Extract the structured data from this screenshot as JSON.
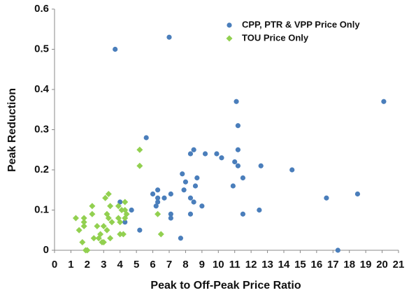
{
  "chart_data": {
    "type": "scatter",
    "xlabel": "Peak to Off-Peak Price Ratio",
    "ylabel": "Peak Reduction",
    "xlim": [
      0,
      21
    ],
    "xticks": [
      0,
      1,
      2,
      3,
      4,
      5,
      6,
      7,
      8,
      9,
      10,
      11,
      12,
      13,
      14,
      15,
      16,
      17,
      18,
      19,
      20,
      21
    ],
    "ylim": [
      0,
      0.6
    ],
    "yticks": [
      0,
      0.1,
      0.2,
      0.3,
      0.4,
      0.5,
      0.6
    ],
    "legend": "upper right",
    "series": [
      {
        "name": "CPP, PTR & VPP Price Only",
        "color": "#4a7ebb",
        "marker": "circle",
        "x": [
          3.7,
          7.0,
          5.6,
          20.1,
          11.1,
          11.2,
          8.5,
          8.3,
          9.2,
          9.9,
          10.2,
          11.2,
          11.0,
          11.2,
          12.6,
          14.5,
          7.8,
          8.7,
          11.5,
          8.0,
          8.6,
          10.9,
          7.9,
          6.3,
          6.0,
          7.1,
          18.5,
          6.3,
          6.7,
          8.3,
          16.6,
          6.3,
          8.5,
          4.0,
          6.2,
          9.0,
          4.7,
          12.5,
          7.1,
          8.3,
          11.5,
          7.1,
          4.3,
          5.2,
          7.7,
          17.3
        ],
        "values": [
          0.5,
          0.53,
          0.28,
          0.37,
          0.37,
          0.31,
          0.25,
          0.24,
          0.24,
          0.24,
          0.23,
          0.25,
          0.22,
          0.21,
          0.21,
          0.2,
          0.19,
          0.18,
          0.18,
          0.17,
          0.16,
          0.16,
          0.15,
          0.15,
          0.14,
          0.14,
          0.14,
          0.13,
          0.13,
          0.13,
          0.13,
          0.12,
          0.12,
          0.12,
          0.11,
          0.11,
          0.1,
          0.1,
          0.09,
          0.09,
          0.09,
          0.08,
          0.07,
          0.05,
          0.03,
          0
        ]
      },
      {
        "name": "TOU Price Only",
        "color": "#92d050",
        "marker": "diamond",
        "x": [
          1.3,
          1.5,
          1.7,
          1.8,
          1.8,
          1.8,
          2.0,
          1.9,
          2.3,
          2.3,
          2.4,
          2.6,
          2.7,
          2.8,
          2.9,
          3.0,
          3.0,
          3.1,
          3.3,
          3.2,
          3.3,
          3.2,
          3.4,
          3.5,
          3.4,
          3.9,
          3.9,
          4.0,
          4.0,
          4.1,
          4.3,
          4.3,
          4.3,
          4.2,
          4.4,
          5.2,
          5.2,
          6.3,
          6.5
        ],
        "values": [
          0.08,
          0.05,
          0.02,
          0.08,
          0.07,
          0.06,
          0,
          0,
          0.11,
          0.09,
          0.03,
          0.06,
          0.03,
          0.04,
          0.02,
          0.02,
          0.06,
          0.13,
          0.14,
          0.09,
          0.08,
          0.05,
          0.11,
          0.07,
          0.03,
          0.11,
          0.08,
          0.07,
          0.04,
          0.1,
          0.12,
          0.1,
          0.08,
          0.04,
          0.09,
          0.25,
          0.21,
          0.09,
          0.04
        ]
      }
    ]
  }
}
